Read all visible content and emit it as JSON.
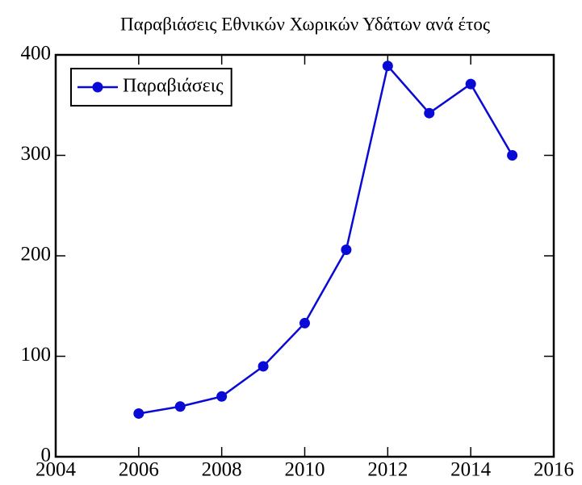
{
  "chart_data": {
    "type": "line",
    "title": "Παραβιάσεις Εθνικών Χωρικών Υδάτων ανά έτος",
    "x": [
      2006,
      2007,
      2008,
      2009,
      2010,
      2011,
      2012,
      2013,
      2014,
      2015
    ],
    "series": [
      {
        "name": "Παραβιάσεις",
        "color": "#0a0ad6",
        "values": [
          43,
          50,
          60,
          90,
          133,
          206,
          389,
          342,
          371,
          300
        ]
      }
    ],
    "xlim": [
      2004,
      2016
    ],
    "xticks": [
      2004,
      2006,
      2008,
      2010,
      2012,
      2014,
      2016
    ],
    "ylim": [
      0,
      400
    ],
    "yticks": [
      0,
      100,
      200,
      300,
      400
    ],
    "grid": false,
    "legend": "upper left"
  }
}
